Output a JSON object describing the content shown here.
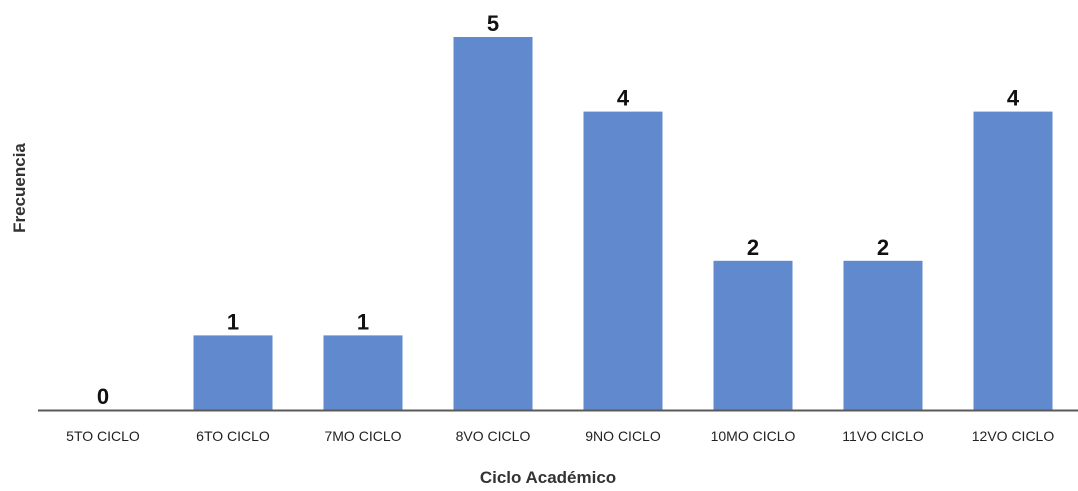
{
  "chart_data": {
    "type": "bar",
    "categories": [
      "5TO CICLO",
      "6TO CICLO",
      "7MO CICLO",
      "8VO CICLO",
      "9NO CICLO",
      "10MO CICLO",
      "11VO CICLO",
      "12VO CICLO"
    ],
    "values": [
      0,
      1,
      1,
      5,
      4,
      2,
      2,
      4
    ],
    "xlabel": "Ciclo Académico",
    "ylabel": "Frecuencia",
    "ylim": [
      0,
      5
    ],
    "grid": false,
    "legend": "none",
    "bar_color": "#6189cd",
    "axis_color": "#595959"
  }
}
